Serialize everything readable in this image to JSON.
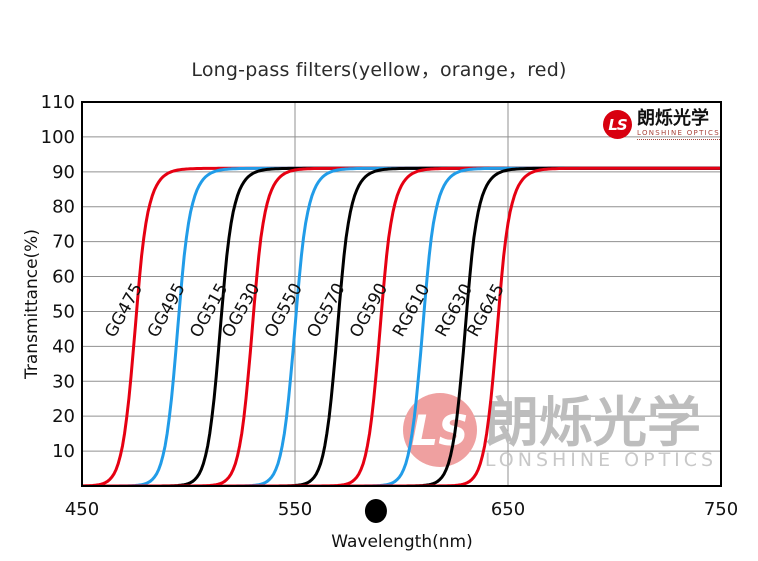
{
  "logo": {
    "monogram": "LS",
    "company_cn": "朗烁光学",
    "company_en": "LONSHINE OPTICS",
    "accent_color": "#d8000f"
  },
  "watermark": {
    "monogram": "LS",
    "company_cn": "朗烁光学",
    "company_en": "LONSHINE OPTICS",
    "icon_color": "#efa0a0",
    "text_color": "#bdbdbd",
    "subtext_color": "#c8c8c8"
  },
  "chart_data": {
    "type": "line",
    "title": "Long-pass filters(yellow，orange，red)",
    "xlabel": "Wavelength(nm)",
    "ylabel": "Transmittance(%)",
    "xlim": [
      450,
      750
    ],
    "ylim": [
      0,
      110
    ],
    "xticks": [
      "450",
      "550",
      "650",
      "750"
    ],
    "yticks": [
      "10",
      "20",
      "30",
      "40",
      "50",
      "60",
      "70",
      "80",
      "90",
      "100",
      "110"
    ],
    "x_gridlines_nm": [
      550,
      650
    ],
    "grid": "horizontal gridlines every 10%, vertical gridlines at 550 and 650 nm, full box border",
    "legend_position": "labels rotated beside each curve inside plot",
    "plateau_transmittance_pct": 91,
    "edge_profile_rel_nm_to_pct": {
      "-15": 0.5,
      "-10": 3.6,
      "-5": 15.2,
      "0": 45.5,
      "5": 75.3,
      "10": 86.1,
      "15": 89.5,
      "20": 90.5,
      "30": 90.9
    },
    "series": [
      {
        "name": "GG475",
        "cut_on_nm": 475,
        "color_key": "red"
      },
      {
        "name": "GG495",
        "cut_on_nm": 495,
        "color_key": "blue"
      },
      {
        "name": "OG515",
        "cut_on_nm": 515,
        "color_key": "black"
      },
      {
        "name": "OG530",
        "cut_on_nm": 530,
        "color_key": "red"
      },
      {
        "name": "OG550",
        "cut_on_nm": 550,
        "color_key": "blue"
      },
      {
        "name": "OG570",
        "cut_on_nm": 570,
        "color_key": "black"
      },
      {
        "name": "OG590",
        "cut_on_nm": 590,
        "color_key": "red"
      },
      {
        "name": "RG610",
        "cut_on_nm": 610,
        "color_key": "blue"
      },
      {
        "name": "RG630",
        "cut_on_nm": 630,
        "color_key": "black"
      },
      {
        "name": "RG645",
        "cut_on_nm": 645,
        "color_key": "red"
      }
    ],
    "series_colors": {
      "red": "#e60012",
      "blue": "#219ce8",
      "black": "#000000"
    },
    "grid_color": "#909090",
    "axis_marker_dot_nm": 588
  }
}
